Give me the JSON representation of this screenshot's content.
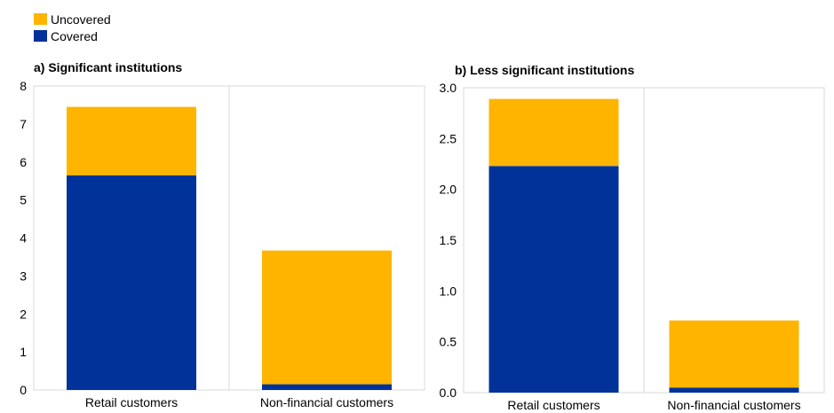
{
  "legend": {
    "items": [
      {
        "label": "Uncovered",
        "color": "#FFB400"
      },
      {
        "label": "Covered",
        "color": "#003299"
      }
    ]
  },
  "chart_data": [
    {
      "type": "bar",
      "stacked": true,
      "title": "a) Significant institutions",
      "categories": [
        "Retail customers",
        "Non-financial customers"
      ],
      "series": [
        {
          "name": "Covered",
          "values": [
            5.65,
            0.15
          ],
          "color": "#003299"
        },
        {
          "name": "Uncovered",
          "values": [
            1.8,
            3.52
          ],
          "color": "#FFB400"
        }
      ],
      "ylim": [
        0,
        8
      ],
      "yticks": [
        "0",
        "1",
        "2",
        "3",
        "4",
        "5",
        "6",
        "7",
        "8"
      ],
      "grid": false,
      "legend": "top-left"
    },
    {
      "type": "bar",
      "stacked": true,
      "title": "b) Less significant institutions",
      "categories": [
        "Retail customers",
        "Non-financial customers"
      ],
      "series": [
        {
          "name": "Covered",
          "values": [
            2.23,
            0.05
          ],
          "color": "#003299"
        },
        {
          "name": "Uncovered",
          "values": [
            0.66,
            0.66
          ],
          "color": "#FFB400"
        }
      ],
      "ylim": [
        0,
        3
      ],
      "yticks": [
        "0.0",
        "0.5",
        "1.0",
        "1.5",
        "2.0",
        "2.5",
        "3.0"
      ],
      "grid": false,
      "legend": "top-left"
    }
  ]
}
